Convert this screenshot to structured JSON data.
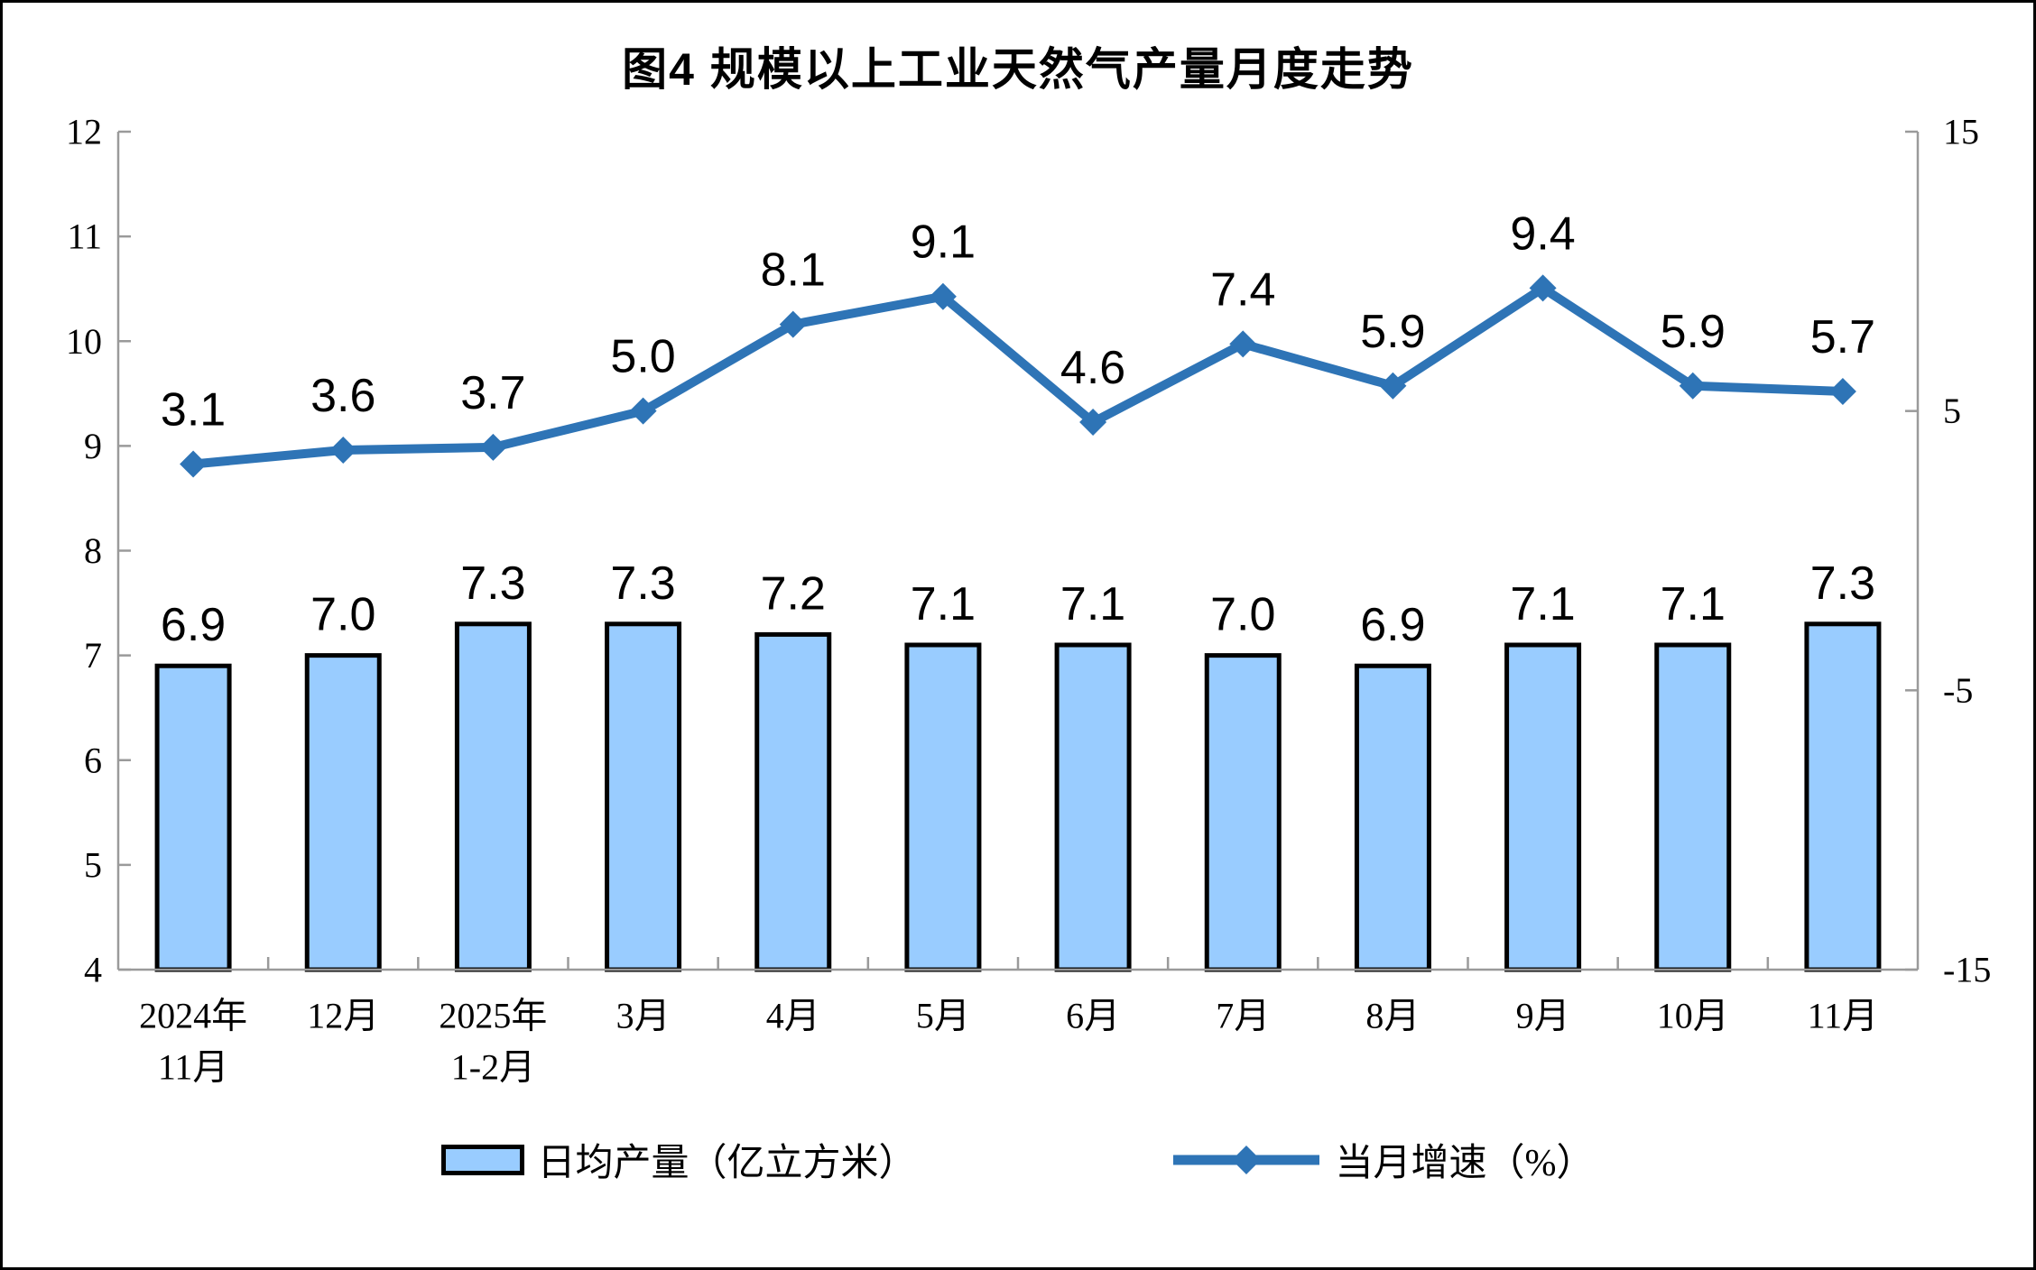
{
  "page": {
    "background": "#ffffff",
    "frame_border_color": "#000000",
    "axis_line_color": "#9a9a9a",
    "text_color": "#000000"
  },
  "chart_data": {
    "type": "bar",
    "combo": "bar+line",
    "title": "图4 规模以上工业天然气产量月度走势",
    "categories": [
      "2024年\n11月",
      "12月",
      "2025年\n1-2月",
      "3月",
      "4月",
      "5月",
      "6月",
      "7月",
      "8月",
      "9月",
      "10月",
      "11月"
    ],
    "series": [
      {
        "name": "日均产量（亿立方米）",
        "type": "bar",
        "axis": "left",
        "values": [
          6.9,
          7.0,
          7.3,
          7.3,
          7.2,
          7.1,
          7.1,
          7.0,
          6.9,
          7.1,
          7.1,
          7.3
        ],
        "labels": [
          "6.9",
          "7.0",
          "7.3",
          "7.3",
          "7.2",
          "7.1",
          "7.1",
          "7.0",
          "6.9",
          "7.1",
          "7.1",
          "7.3"
        ],
        "fill": "#99CCFF",
        "border": "#000000"
      },
      {
        "name": "当月增速（%）",
        "type": "line",
        "axis": "right",
        "values": [
          3.1,
          3.6,
          3.7,
          5.0,
          8.1,
          9.1,
          4.6,
          7.4,
          5.9,
          9.4,
          5.9,
          5.7
        ],
        "labels": [
          "3.1",
          "3.6",
          "3.7",
          "5.0",
          "8.1",
          "9.1",
          "4.6",
          "7.4",
          "5.9",
          "9.4",
          "5.9",
          "5.7"
        ],
        "color": "#2E74B6",
        "marker": "diamond"
      }
    ],
    "left_axis": {
      "min": 4,
      "max": 12,
      "ticks": [
        4,
        5,
        6,
        7,
        8,
        9,
        10,
        11,
        12
      ]
    },
    "right_axis": {
      "min": -15,
      "max": 15,
      "ticks": [
        15,
        5,
        -5,
        -15
      ]
    },
    "grid": false,
    "legend_position": "bottom"
  }
}
